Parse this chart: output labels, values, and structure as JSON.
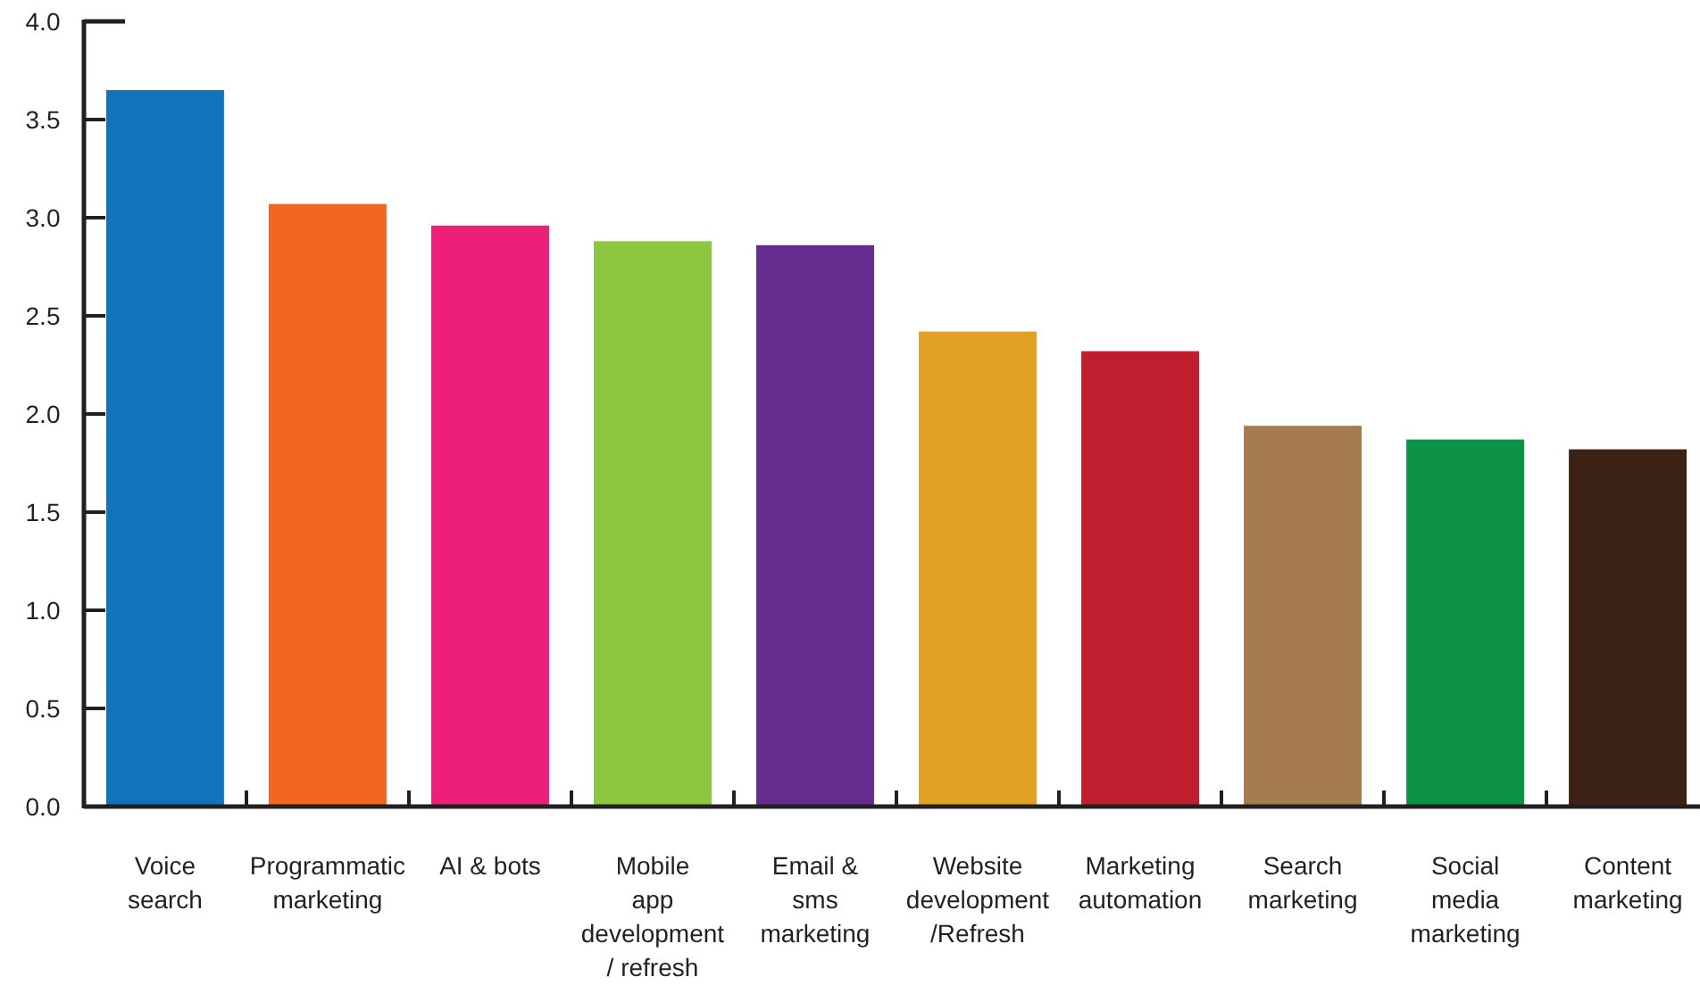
{
  "chart_data": {
    "type": "bar",
    "categories": [
      "Voice\nsearch",
      "Programmatic\nmarketing",
      "AI & bots",
      "Mobile\napp\ndevelopment\n/ refresh",
      "Email &\nsms\nmarketing",
      "Website\ndevelopment\n/Refresh",
      "Marketing\nautomation",
      "Search\nmarketing",
      "Social\nmedia\nmarketing",
      "Content\nmarketing"
    ],
    "values": [
      3.65,
      3.07,
      2.96,
      2.88,
      2.86,
      2.42,
      2.32,
      1.94,
      1.87,
      1.82
    ],
    "colors": [
      "#1174ba",
      "#f26522",
      "#ed2079",
      "#8dc63f",
      "#662d91",
      "#e1a124",
      "#be1e2d",
      "#a77b51",
      "#0d9345",
      "#3c2215"
    ],
    "ylim": [
      0,
      4
    ],
    "yticks": [
      {
        "value": 0,
        "label": "0.0"
      },
      {
        "value": 0.5,
        "label": "0.5"
      },
      {
        "value": 1,
        "label": "1.0"
      },
      {
        "value": 1.5,
        "label": "1.5"
      },
      {
        "value": 2,
        "label": "2.0"
      },
      {
        "value": 2.5,
        "label": "2.5"
      },
      {
        "value": 3,
        "label": "3.0"
      },
      {
        "value": 3.5,
        "label": "3.5"
      },
      {
        "value": 4,
        "label": "4.0"
      }
    ],
    "grid": false
  }
}
